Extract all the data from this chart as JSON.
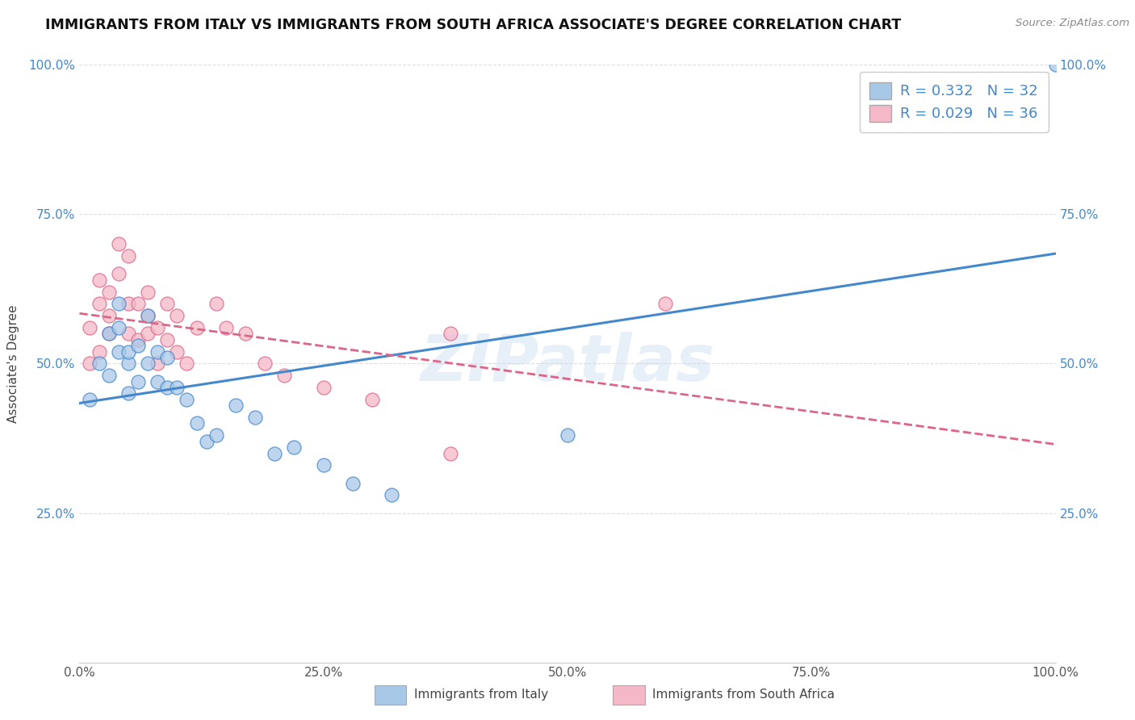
{
  "title": "IMMIGRANTS FROM ITALY VS IMMIGRANTS FROM SOUTH AFRICA ASSOCIATE'S DEGREE CORRELATION CHART",
  "source": "Source: ZipAtlas.com",
  "ylabel": "Associate's Degree",
  "legend_r": [
    0.332,
    0.029
  ],
  "legend_n": [
    32,
    36
  ],
  "color_italy": "#a8c8e8",
  "color_sa": "#f4b8c8",
  "line_color_italy": "#4488cc",
  "line_color_sa": "#dd6688",
  "watermark_text": "ZIPatlas",
  "italy_x": [
    0.01,
    0.02,
    0.03,
    0.03,
    0.04,
    0.04,
    0.04,
    0.05,
    0.05,
    0.05,
    0.06,
    0.06,
    0.07,
    0.07,
    0.08,
    0.08,
    0.09,
    0.09,
    0.1,
    0.11,
    0.12,
    0.13,
    0.14,
    0.16,
    0.18,
    0.2,
    0.22,
    0.25,
    0.28,
    0.32,
    0.5,
    1.0
  ],
  "italy_y": [
    0.44,
    0.5,
    0.48,
    0.55,
    0.52,
    0.56,
    0.6,
    0.5,
    0.45,
    0.52,
    0.47,
    0.53,
    0.5,
    0.58,
    0.47,
    0.52,
    0.46,
    0.51,
    0.46,
    0.44,
    0.4,
    0.37,
    0.38,
    0.43,
    0.41,
    0.35,
    0.36,
    0.33,
    0.3,
    0.28,
    0.38,
    1.0
  ],
  "sa_x": [
    0.01,
    0.01,
    0.02,
    0.02,
    0.02,
    0.03,
    0.03,
    0.03,
    0.04,
    0.04,
    0.05,
    0.05,
    0.05,
    0.06,
    0.06,
    0.07,
    0.07,
    0.07,
    0.08,
    0.08,
    0.09,
    0.09,
    0.1,
    0.1,
    0.11,
    0.12,
    0.14,
    0.15,
    0.17,
    0.19,
    0.21,
    0.25,
    0.3,
    0.38,
    0.38,
    0.6
  ],
  "sa_y": [
    0.5,
    0.56,
    0.52,
    0.6,
    0.64,
    0.58,
    0.55,
    0.62,
    0.65,
    0.7,
    0.55,
    0.6,
    0.68,
    0.54,
    0.6,
    0.55,
    0.62,
    0.58,
    0.56,
    0.5,
    0.54,
    0.6,
    0.52,
    0.58,
    0.5,
    0.56,
    0.6,
    0.56,
    0.55,
    0.5,
    0.48,
    0.46,
    0.44,
    0.35,
    0.55,
    0.6
  ],
  "xlim": [
    0.0,
    1.0
  ],
  "ylim": [
    0.0,
    1.0
  ],
  "xticks": [
    0.0,
    0.25,
    0.5,
    0.75,
    1.0
  ],
  "xtick_labels": [
    "0.0%",
    "25.0%",
    "50.0%",
    "75.0%",
    "100.0%"
  ],
  "yticks": [
    0.25,
    0.5,
    0.75,
    1.0
  ],
  "ytick_labels": [
    "25.0%",
    "50.0%",
    "75.0%",
    "100.0%"
  ],
  "grid_color": "#dddddd",
  "background_color": "#ffffff",
  "title_fontsize": 12.5,
  "axis_fontsize": 11,
  "tick_fontsize": 11,
  "legend_fontsize": 13,
  "bottom_legend_labels": [
    "Immigrants from Italy",
    "Immigrants from South Africa"
  ]
}
